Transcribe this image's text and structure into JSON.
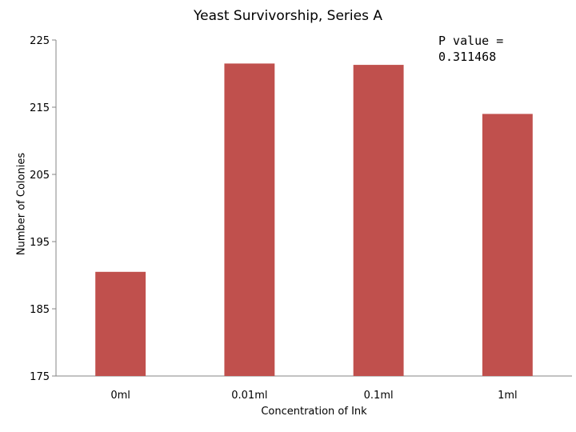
{
  "chart_data": {
    "type": "bar",
    "title": "Yeast Survivorship, Series A",
    "xlabel": "Concentration of Ink",
    "ylabel": "Number of Colonies",
    "categories": [
      "0ml",
      "0.01ml",
      "0.1ml",
      "1ml"
    ],
    "values": [
      190.5,
      221.5,
      221.3,
      214.0
    ],
    "ylim": [
      175,
      225
    ],
    "yticks": [
      175,
      185,
      195,
      205,
      215,
      225
    ],
    "grid": false,
    "legend": "none",
    "bar_color": "#c0504d",
    "annotation": [
      "P value =",
      "0.311468"
    ]
  }
}
